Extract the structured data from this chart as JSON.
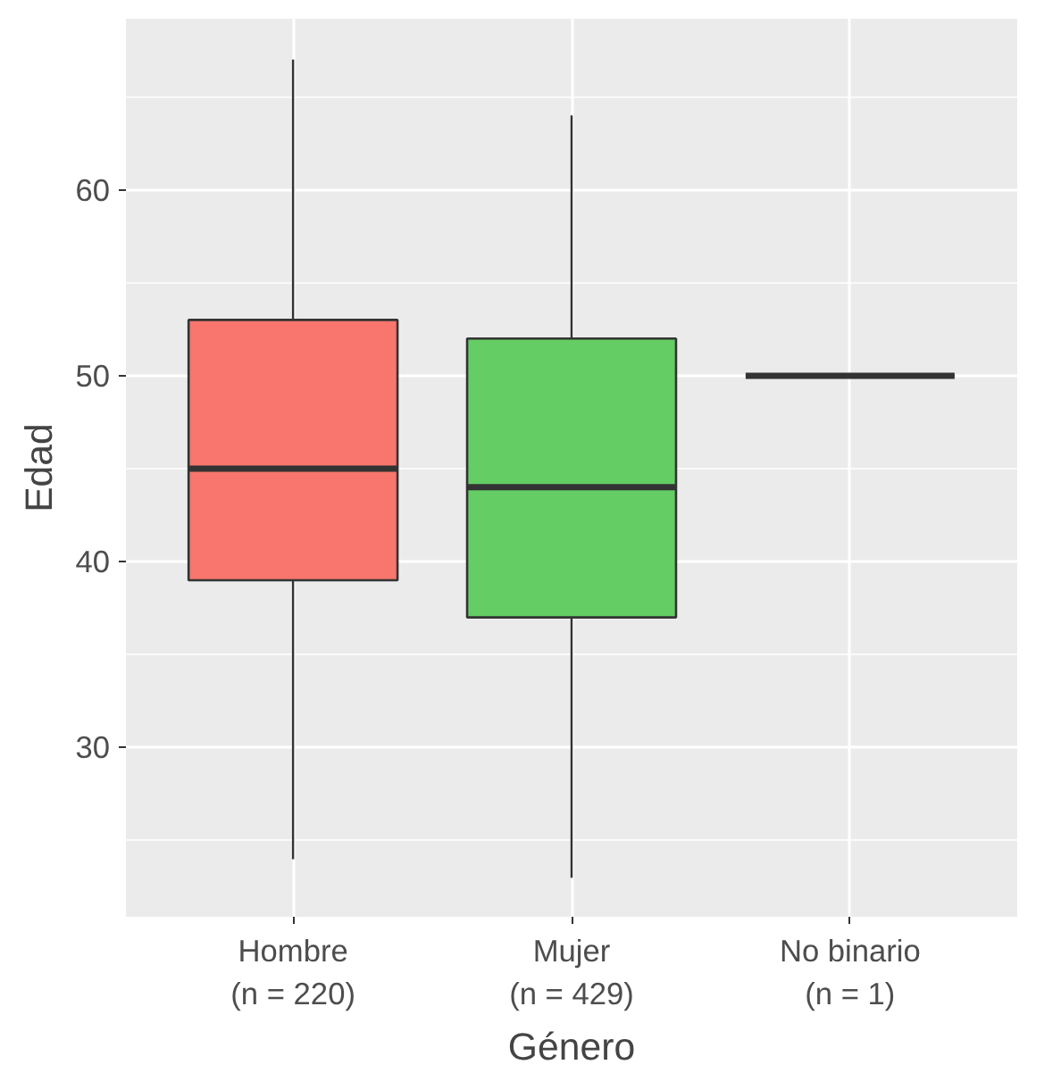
{
  "chart_data": {
    "type": "box",
    "xlabel": "Género",
    "ylabel": "Edad",
    "categories": [
      "Hombre\n(n = 220)",
      "Mujer\n(n = 429)",
      "No binario\n(n = 1)"
    ],
    "colors": [
      "#f8766d",
      "#64cd64",
      "#333333"
    ],
    "boxes": [
      {
        "low": 24,
        "q1": 39,
        "median": 45,
        "q3": 53,
        "high": 67
      },
      {
        "low": 23,
        "q1": 37,
        "median": 44,
        "q3": 52,
        "high": 64
      },
      {
        "low": 50,
        "q1": 50,
        "median": 50,
        "q3": 50,
        "high": 50
      }
    ],
    "ylim": [
      20.9,
      69.2
    ],
    "yticks": [
      30,
      40,
      50,
      60
    ],
    "grid": true
  }
}
